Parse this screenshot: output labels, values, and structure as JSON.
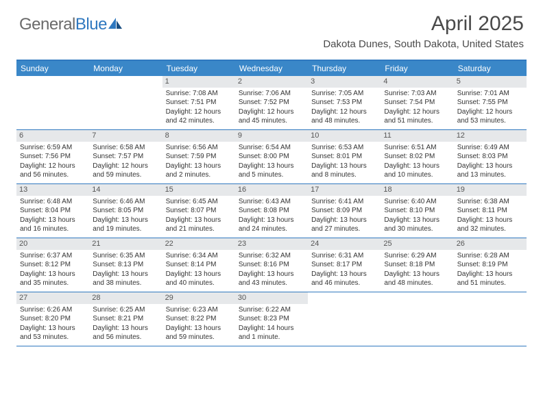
{
  "brand": {
    "part1": "General",
    "part2": "Blue"
  },
  "title": "April 2025",
  "location": "Dakota Dunes, South Dakota, United States",
  "colors": {
    "header_bar": "#3a87c8",
    "rule": "#2f78bf",
    "daynum_bg": "#e6e8ea",
    "text": "#333333",
    "brand_gray": "#6a6a6a",
    "brand_blue": "#2f78bf"
  },
  "weekdays": [
    "Sunday",
    "Monday",
    "Tuesday",
    "Wednesday",
    "Thursday",
    "Friday",
    "Saturday"
  ],
  "first_weekday_index": 2,
  "days": [
    {
      "n": 1,
      "sr": "7:08 AM",
      "ss": "7:51 PM",
      "dl": "12 hours and 42 minutes."
    },
    {
      "n": 2,
      "sr": "7:06 AM",
      "ss": "7:52 PM",
      "dl": "12 hours and 45 minutes."
    },
    {
      "n": 3,
      "sr": "7:05 AM",
      "ss": "7:53 PM",
      "dl": "12 hours and 48 minutes."
    },
    {
      "n": 4,
      "sr": "7:03 AM",
      "ss": "7:54 PM",
      "dl": "12 hours and 51 minutes."
    },
    {
      "n": 5,
      "sr": "7:01 AM",
      "ss": "7:55 PM",
      "dl": "12 hours and 53 minutes."
    },
    {
      "n": 6,
      "sr": "6:59 AM",
      "ss": "7:56 PM",
      "dl": "12 hours and 56 minutes."
    },
    {
      "n": 7,
      "sr": "6:58 AM",
      "ss": "7:57 PM",
      "dl": "12 hours and 59 minutes."
    },
    {
      "n": 8,
      "sr": "6:56 AM",
      "ss": "7:59 PM",
      "dl": "13 hours and 2 minutes."
    },
    {
      "n": 9,
      "sr": "6:54 AM",
      "ss": "8:00 PM",
      "dl": "13 hours and 5 minutes."
    },
    {
      "n": 10,
      "sr": "6:53 AM",
      "ss": "8:01 PM",
      "dl": "13 hours and 8 minutes."
    },
    {
      "n": 11,
      "sr": "6:51 AM",
      "ss": "8:02 PM",
      "dl": "13 hours and 10 minutes."
    },
    {
      "n": 12,
      "sr": "6:49 AM",
      "ss": "8:03 PM",
      "dl": "13 hours and 13 minutes."
    },
    {
      "n": 13,
      "sr": "6:48 AM",
      "ss": "8:04 PM",
      "dl": "13 hours and 16 minutes."
    },
    {
      "n": 14,
      "sr": "6:46 AM",
      "ss": "8:05 PM",
      "dl": "13 hours and 19 minutes."
    },
    {
      "n": 15,
      "sr": "6:45 AM",
      "ss": "8:07 PM",
      "dl": "13 hours and 21 minutes."
    },
    {
      "n": 16,
      "sr": "6:43 AM",
      "ss": "8:08 PM",
      "dl": "13 hours and 24 minutes."
    },
    {
      "n": 17,
      "sr": "6:41 AM",
      "ss": "8:09 PM",
      "dl": "13 hours and 27 minutes."
    },
    {
      "n": 18,
      "sr": "6:40 AM",
      "ss": "8:10 PM",
      "dl": "13 hours and 30 minutes."
    },
    {
      "n": 19,
      "sr": "6:38 AM",
      "ss": "8:11 PM",
      "dl": "13 hours and 32 minutes."
    },
    {
      "n": 20,
      "sr": "6:37 AM",
      "ss": "8:12 PM",
      "dl": "13 hours and 35 minutes."
    },
    {
      "n": 21,
      "sr": "6:35 AM",
      "ss": "8:13 PM",
      "dl": "13 hours and 38 minutes."
    },
    {
      "n": 22,
      "sr": "6:34 AM",
      "ss": "8:14 PM",
      "dl": "13 hours and 40 minutes."
    },
    {
      "n": 23,
      "sr": "6:32 AM",
      "ss": "8:16 PM",
      "dl": "13 hours and 43 minutes."
    },
    {
      "n": 24,
      "sr": "6:31 AM",
      "ss": "8:17 PM",
      "dl": "13 hours and 46 minutes."
    },
    {
      "n": 25,
      "sr": "6:29 AM",
      "ss": "8:18 PM",
      "dl": "13 hours and 48 minutes."
    },
    {
      "n": 26,
      "sr": "6:28 AM",
      "ss": "8:19 PM",
      "dl": "13 hours and 51 minutes."
    },
    {
      "n": 27,
      "sr": "6:26 AM",
      "ss": "8:20 PM",
      "dl": "13 hours and 53 minutes."
    },
    {
      "n": 28,
      "sr": "6:25 AM",
      "ss": "8:21 PM",
      "dl": "13 hours and 56 minutes."
    },
    {
      "n": 29,
      "sr": "6:23 AM",
      "ss": "8:22 PM",
      "dl": "13 hours and 59 minutes."
    },
    {
      "n": 30,
      "sr": "6:22 AM",
      "ss": "8:23 PM",
      "dl": "14 hours and 1 minute."
    }
  ],
  "labels": {
    "sunrise": "Sunrise: ",
    "sunset": "Sunset: ",
    "daylight": "Daylight: "
  }
}
